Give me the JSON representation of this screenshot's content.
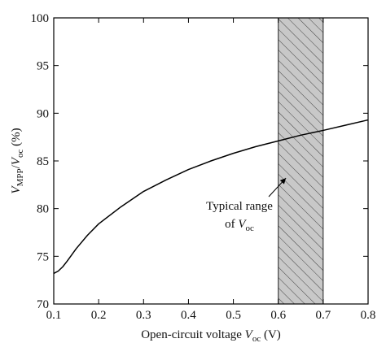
{
  "chart_data": {
    "type": "line",
    "title": "",
    "xlabel": {
      "main": "Open-circuit voltage ",
      "var": "V",
      "sub": "oc",
      "unit": " (V)"
    },
    "ylabel": {
      "var1": "V",
      "sub1": "MPP",
      "slash": "/",
      "var2": "V",
      "sub2": "oc",
      "unit": " (%)"
    },
    "xlim": [
      0.1,
      0.8
    ],
    "ylim": [
      70,
      100
    ],
    "xticks": [
      0.1,
      0.2,
      0.3,
      0.4,
      0.5,
      0.6,
      0.7,
      0.8
    ],
    "yticks": [
      70,
      75,
      80,
      85,
      90,
      95,
      100
    ],
    "xtick_labels": [
      "0.1",
      "0.2",
      "0.3",
      "0.4",
      "0.5",
      "0.6",
      "0.7",
      "0.8"
    ],
    "ytick_labels": [
      "70",
      "75",
      "80",
      "85",
      "90",
      "95",
      "100"
    ],
    "grid": false,
    "series": [
      {
        "x": [
          0.1,
          0.11,
          0.12,
          0.13,
          0.14,
          0.15,
          0.175,
          0.2,
          0.25,
          0.3,
          0.35,
          0.4,
          0.45,
          0.5,
          0.55,
          0.6,
          0.65,
          0.7,
          0.75,
          0.8
        ],
        "y": [
          73.2,
          73.45,
          73.9,
          74.5,
          75.15,
          75.8,
          77.2,
          78.4,
          80.2,
          81.8,
          83.0,
          84.1,
          85.0,
          85.8,
          86.5,
          87.1,
          87.7,
          88.2,
          88.75,
          89.3
        ]
      }
    ],
    "shaded_region": {
      "x_start": 0.6,
      "x_end": 0.7,
      "pattern": "diagonal-hatch",
      "fill": "#c8c8c8"
    },
    "annotation": {
      "line1": "Typical range",
      "line2_prefix": "of ",
      "line2_var": "V",
      "line2_sub": "oc",
      "arrow_to": {
        "x": 0.617,
        "y": 83.2
      }
    },
    "colors": {
      "line": "#000000",
      "hatch": "#444444",
      "region_fill": "#c8c8c8"
    }
  }
}
